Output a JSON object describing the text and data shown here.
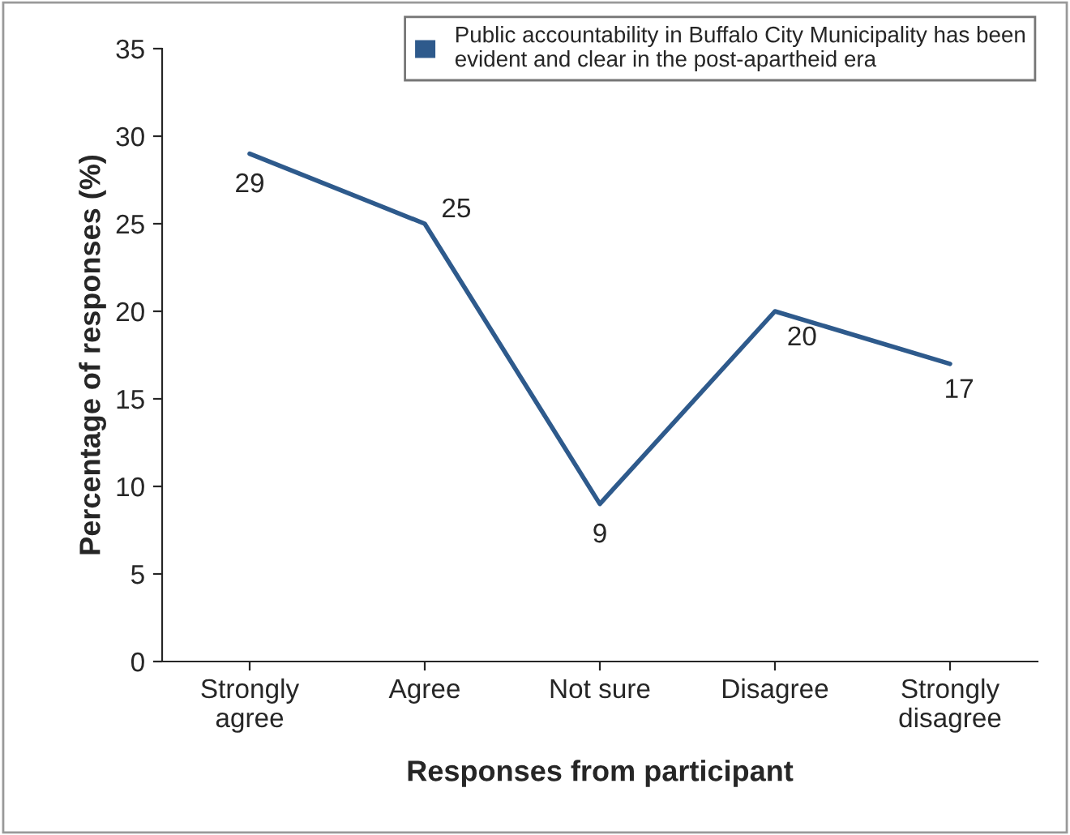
{
  "chart_data": {
    "type": "line",
    "xlabel": "Responses from participant",
    "ylabel": "Percentage of responses (%)",
    "categories": [
      "Strongly\nagree",
      "Agree",
      "Not sure",
      "Disagree",
      "Strongly\ndisagree"
    ],
    "series": [
      {
        "name": "Public accountability in Buffalo City Municipality has been\nevident and clear in the post-apartheid era",
        "color": "#2e5a8c",
        "values": [
          29,
          25,
          9,
          20,
          17
        ]
      }
    ],
    "ylim": [
      0,
      35
    ],
    "yticks": [
      0,
      5,
      10,
      15,
      20,
      25,
      30,
      35
    ],
    "data_labels": true,
    "legend": "top right",
    "grid": false,
    "marker": "none",
    "line_style": "solid"
  }
}
